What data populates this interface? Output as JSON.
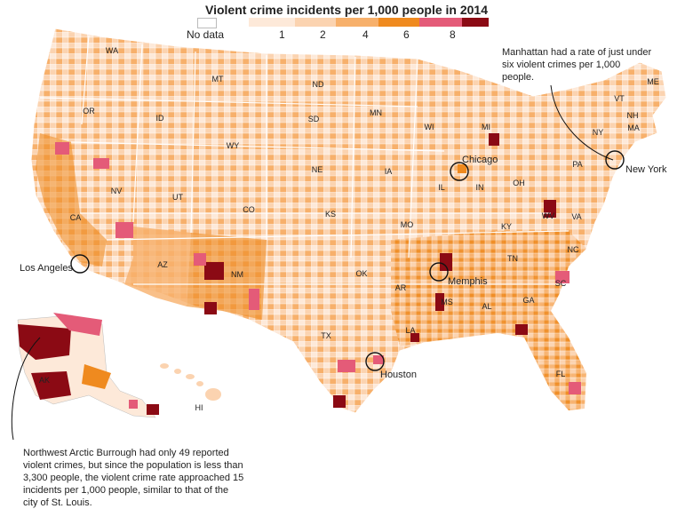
{
  "title": "Violent crime incidents per 1,000 people in 2014",
  "legend": {
    "no_data_label": "No data",
    "ticks": [
      "1",
      "2",
      "4",
      "6",
      "8"
    ],
    "colors": [
      "#fde9d9",
      "#fbd3b0",
      "#f7b06b",
      "#ef8a1f",
      "#e45b78",
      "#8b0a14"
    ]
  },
  "states": [
    {
      "abbr": "WA"
    },
    {
      "abbr": "OR"
    },
    {
      "abbr": "ID"
    },
    {
      "abbr": "MT"
    },
    {
      "abbr": "ND"
    },
    {
      "abbr": "MN"
    },
    {
      "abbr": "SD"
    },
    {
      "abbr": "WY"
    },
    {
      "abbr": "WI"
    },
    {
      "abbr": "MI"
    },
    {
      "abbr": "NE"
    },
    {
      "abbr": "IA"
    },
    {
      "abbr": "NV"
    },
    {
      "abbr": "UT"
    },
    {
      "abbr": "CO"
    },
    {
      "abbr": "KS"
    },
    {
      "abbr": "IL"
    },
    {
      "abbr": "IN"
    },
    {
      "abbr": "OH"
    },
    {
      "abbr": "PA"
    },
    {
      "abbr": "NY"
    },
    {
      "abbr": "VT"
    },
    {
      "abbr": "NH"
    },
    {
      "abbr": "ME"
    },
    {
      "abbr": "MA"
    },
    {
      "abbr": "CA"
    },
    {
      "abbr": "AZ"
    },
    {
      "abbr": "NM"
    },
    {
      "abbr": "OK"
    },
    {
      "abbr": "MO"
    },
    {
      "abbr": "KY"
    },
    {
      "abbr": "WV"
    },
    {
      "abbr": "VA"
    },
    {
      "abbr": "TN"
    },
    {
      "abbr": "NC"
    },
    {
      "abbr": "AR"
    },
    {
      "abbr": "SC"
    },
    {
      "abbr": "MS"
    },
    {
      "abbr": "AL"
    },
    {
      "abbr": "GA"
    },
    {
      "abbr": "TX"
    },
    {
      "abbr": "LA"
    },
    {
      "abbr": "FL"
    },
    {
      "abbr": "AK"
    },
    {
      "abbr": "HI"
    }
  ],
  "cities": [
    "Chicago",
    "New York",
    "Los Angeles",
    "Memphis",
    "Houston"
  ],
  "annotations": {
    "manhattan": "Manhattan had a rate of just under six violent crimes per 1,000 people.",
    "arctic": "Northwest Arctic Burrough had only 49 reported violent crimes, but since the population is less than 3,300 people, the violent crime rate approached 15 incidents per 1,000 people, similar to that of the city of St. Louis."
  }
}
